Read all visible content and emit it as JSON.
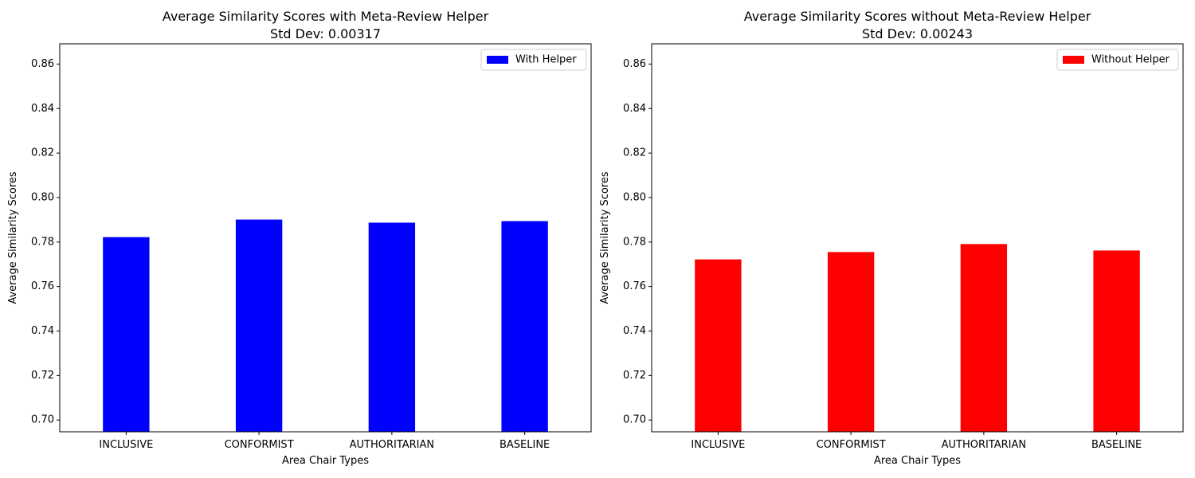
{
  "chart_data": [
    {
      "type": "bar",
      "title": "Average Similarity Scores with Meta-Review Helper",
      "subtitle": "Std Dev: 0.00317",
      "xlabel": "Area Chair Types",
      "ylabel": "Average Similarity Scores",
      "categories": [
        "INCLUSIVE",
        "CONFORMIST",
        "AUTHORITARIAN",
        "BASELINE"
      ],
      "series": [
        {
          "name": "With Helper",
          "color": "#0000ff",
          "values": [
            0.7822,
            0.7901,
            0.7887,
            0.7894
          ]
        }
      ],
      "ylim": [
        0.6947,
        0.8691
      ],
      "yticks": [
        0.7,
        0.72,
        0.74,
        0.76,
        0.78,
        0.8,
        0.82,
        0.84,
        0.86
      ],
      "ytick_labels": [
        "0.70",
        "0.72",
        "0.74",
        "0.76",
        "0.78",
        "0.80",
        "0.82",
        "0.84",
        "0.86"
      ],
      "grid": false,
      "legend_position": "top-right"
    },
    {
      "type": "bar",
      "title": "Average Similarity Scores without Meta-Review Helper",
      "subtitle": "Std Dev: 0.00243",
      "xlabel": "Area Chair Types",
      "ylabel": "Average Similarity Scores",
      "categories": [
        "INCLUSIVE",
        "CONFORMIST",
        "AUTHORITARIAN",
        "BASELINE"
      ],
      "series": [
        {
          "name": "Without Helper",
          "color": "#ff0000",
          "values": [
            0.7722,
            0.7755,
            0.7791,
            0.7762
          ]
        }
      ],
      "ylim": [
        0.6947,
        0.8691
      ],
      "yticks": [
        0.7,
        0.72,
        0.74,
        0.76,
        0.78,
        0.8,
        0.82,
        0.84,
        0.86
      ],
      "ytick_labels": [
        "0.70",
        "0.72",
        "0.74",
        "0.76",
        "0.78",
        "0.80",
        "0.82",
        "0.84",
        "0.86"
      ],
      "grid": false,
      "legend_position": "top-right"
    }
  ]
}
